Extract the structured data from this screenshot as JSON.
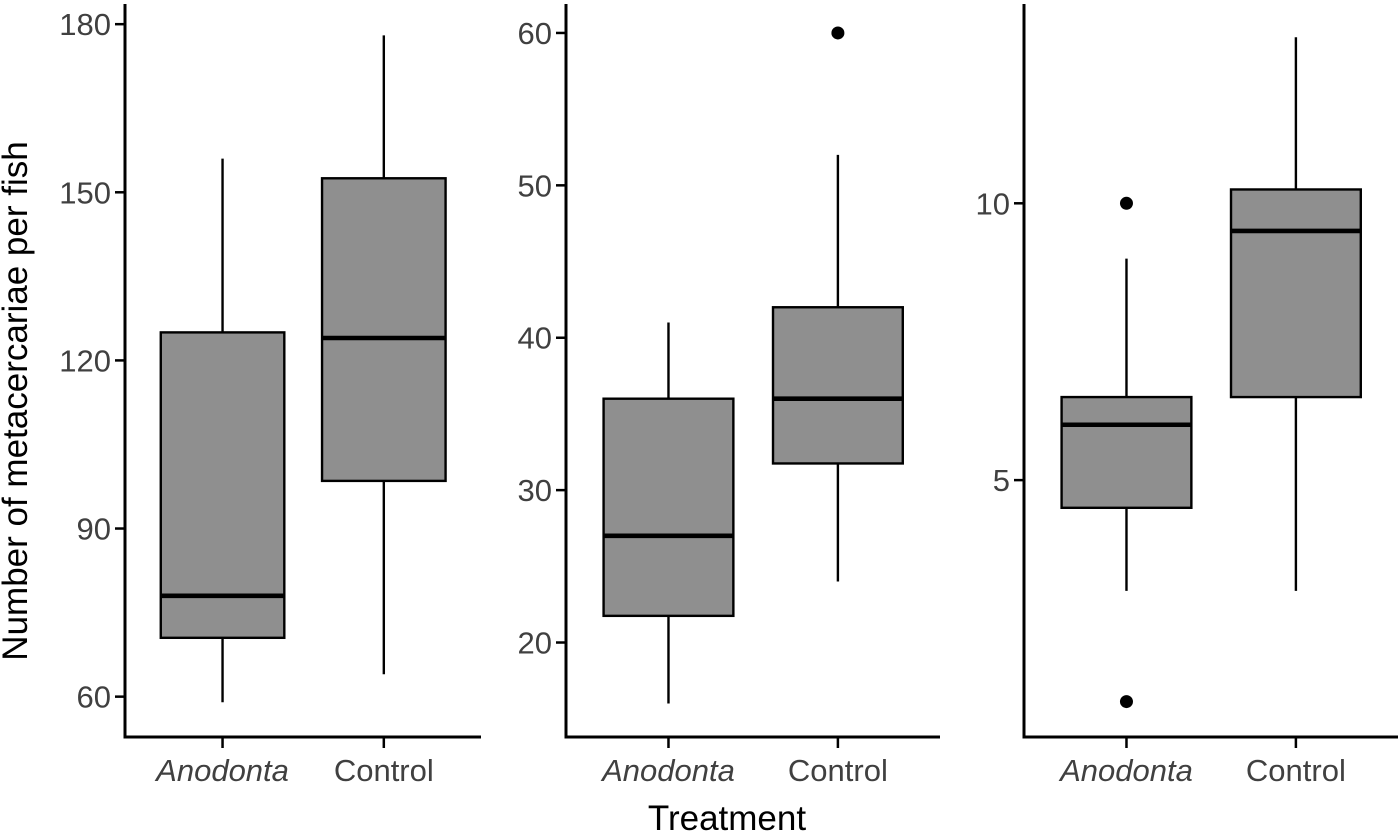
{
  "figure": {
    "background": "#ffffff"
  },
  "style": {
    "box_fill": "#8f8f8f",
    "line_color": "#000000",
    "tick_label_color": "#404040",
    "axis_title_color": "#000000"
  },
  "chart_data": {
    "type": "boxplot",
    "title": "",
    "xlabel": "Treatment",
    "ylabel": "Number of metacercariae per fish",
    "categories": [
      "Anodonta",
      "Control"
    ],
    "category_styles": [
      "italic",
      "normal"
    ],
    "legend": "none",
    "grid": false,
    "panels": [
      {
        "name": "panel-1",
        "ylim": [
          52.8,
          183.6
        ],
        "yticks": [
          60,
          90,
          120,
          150,
          180
        ],
        "boxes": [
          {
            "category": "Anodonta",
            "whisker_low": 59,
            "q1": 70.5,
            "median": 78,
            "q3": 125,
            "whisker_high": 156,
            "outliers": []
          },
          {
            "category": "Control",
            "whisker_low": 64,
            "q1": 98.5,
            "median": 124,
            "q3": 152.5,
            "whisker_high": 178,
            "outliers": []
          }
        ]
      },
      {
        "name": "panel-2",
        "ylim": [
          13.8,
          61.9
        ],
        "yticks": [
          20,
          30,
          40,
          50,
          60
        ],
        "boxes": [
          {
            "category": "Anodonta",
            "whisker_low": 16,
            "q1": 21.75,
            "median": 27,
            "q3": 36,
            "whisker_high": 41,
            "outliers": []
          },
          {
            "category": "Control",
            "whisker_low": 24,
            "q1": 31.75,
            "median": 36,
            "q3": 42,
            "whisker_high": 52,
            "outliers": [
              60
            ]
          }
        ]
      },
      {
        "name": "panel-3",
        "ylim": [
          0.36,
          13.6
        ],
        "yticks": [
          5,
          10
        ],
        "boxes": [
          {
            "category": "Anodonta",
            "whisker_low": 3,
            "q1": 4.5,
            "median": 6,
            "q3": 6.5,
            "whisker_high": 9,
            "outliers": [
              10,
              1
            ]
          },
          {
            "category": "Control",
            "whisker_low": 3,
            "q1": 6.5,
            "median": 9.5,
            "q3": 10.25,
            "whisker_high": 13,
            "outliers": []
          }
        ]
      }
    ]
  }
}
